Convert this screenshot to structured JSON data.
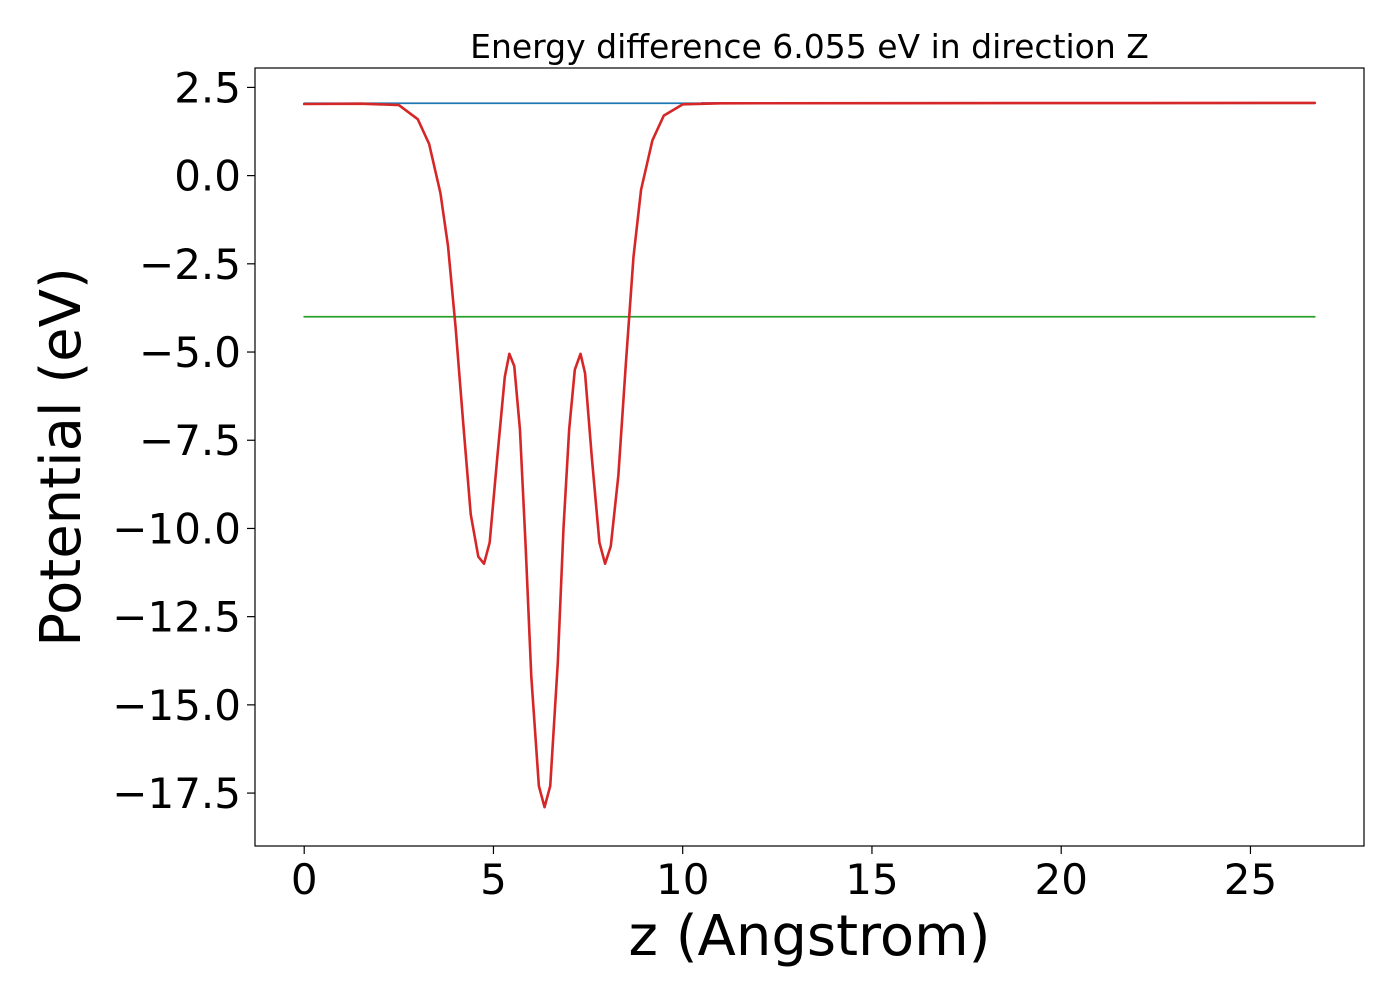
{
  "chart_data": {
    "type": "line",
    "title": "Energy difference 6.055 eV in direction Z",
    "xlabel": "z (Angstrom)",
    "ylabel": "Potential (eV)",
    "xlim": [
      -1.3,
      28.0
    ],
    "ylim": [
      -19.0,
      3.05
    ],
    "xticks": [
      0,
      5,
      10,
      15,
      20,
      25
    ],
    "xtick_labels": [
      "0",
      "5",
      "10",
      "15",
      "20",
      "25"
    ],
    "yticks": [
      2.5,
      0.0,
      -2.5,
      -5.0,
      -7.5,
      -10.0,
      -12.5,
      -15.0,
      -17.5
    ],
    "ytick_labels": [
      "2.5",
      "0.0",
      "−2.5",
      "−5.0",
      "−7.5",
      "−10.0",
      "−12.5",
      "−15.0",
      "−17.5"
    ],
    "grid": false,
    "legend": "none",
    "series": [
      {
        "color": "#1f77b4",
        "x": [
          0,
          26.7
        ],
        "y": [
          2.05,
          2.05
        ]
      },
      {
        "color": "#2ca02c",
        "x": [
          0,
          26.7
        ],
        "y": [
          -4.0,
          -4.0
        ]
      },
      {
        "color": "#9467bd",
        "x": [
          10.5,
          26.7
        ],
        "y": [
          2.06,
          2.06
        ]
      },
      {
        "color": "#d62728",
        "x": [
          0,
          1.5,
          2.5,
          3.0,
          3.3,
          3.6,
          3.8,
          4.0,
          4.2,
          4.4,
          4.6,
          4.75,
          4.9,
          5.1,
          5.3,
          5.42,
          5.55,
          5.7,
          5.85,
          6.0,
          6.2,
          6.35,
          6.5,
          6.7,
          6.85,
          7.0,
          7.15,
          7.3,
          7.42,
          7.6,
          7.8,
          7.95,
          8.1,
          8.3,
          8.5,
          8.7,
          8.9,
          9.2,
          9.5,
          10.0,
          11.0,
          26.7
        ],
        "y": [
          2.03,
          2.04,
          2.0,
          1.6,
          0.9,
          -0.5,
          -2.0,
          -4.3,
          -7.0,
          -9.6,
          -10.8,
          -11.0,
          -10.4,
          -8.0,
          -5.7,
          -5.05,
          -5.4,
          -7.2,
          -10.5,
          -14.2,
          -17.3,
          -17.9,
          -17.3,
          -13.8,
          -10.0,
          -7.2,
          -5.5,
          -5.05,
          -5.6,
          -8.0,
          -10.4,
          -11.0,
          -10.5,
          -8.5,
          -5.3,
          -2.3,
          -0.4,
          1.0,
          1.7,
          2.02,
          2.05,
          2.06
        ]
      }
    ]
  }
}
